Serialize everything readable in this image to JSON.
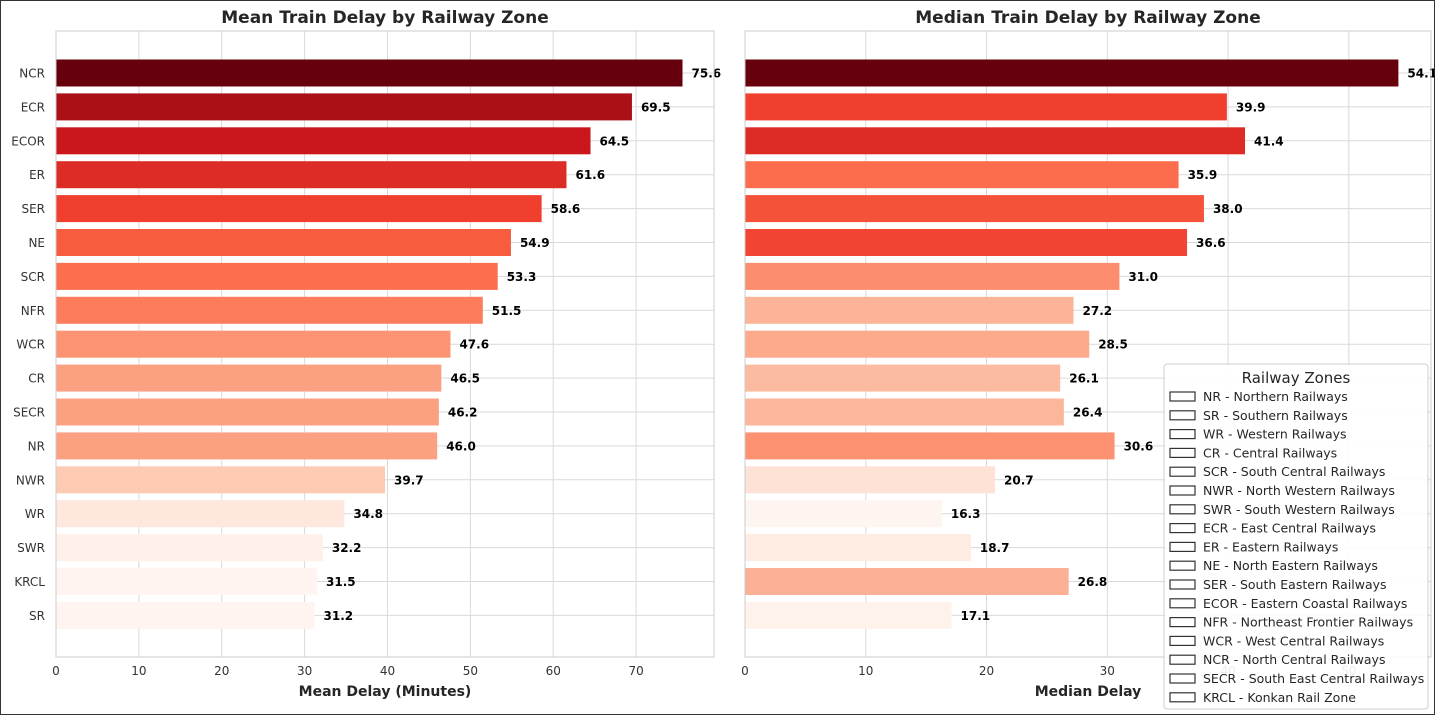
{
  "chart_data": [
    {
      "type": "bar",
      "orientation": "horizontal",
      "title": "Mean Train Delay by Railway Zone",
      "xlabel": "Mean Delay (Minutes)",
      "ylabel": "",
      "xlim": [
        0,
        79.4
      ],
      "xticks": [
        0,
        10,
        20,
        30,
        40,
        50,
        60,
        70
      ],
      "grid": true,
      "categories": [
        "NCR",
        "ECR",
        "ECOR",
        "ER",
        "SER",
        "NE",
        "SCR",
        "NFR",
        "WCR",
        "CR",
        "SECR",
        "NR",
        "NWR",
        "WR",
        "SWR",
        "KRCL",
        "SR"
      ],
      "values": [
        75.6,
        69.5,
        64.5,
        61.6,
        58.6,
        54.9,
        53.3,
        51.5,
        47.6,
        46.5,
        46.2,
        46.0,
        39.7,
        34.8,
        32.2,
        31.5,
        31.2
      ],
      "value_labels": [
        "75.6",
        "69.5",
        "64.5",
        "61.6",
        "58.6",
        "54.9",
        "53.3",
        "51.5",
        "47.6",
        "46.5",
        "46.2",
        "46.0",
        "39.7",
        "34.8",
        "32.2",
        "31.5",
        "31.2"
      ],
      "colors": [
        "#67000d",
        "#ab1017",
        "#c9171c",
        "#dd2b25",
        "#f03f2e",
        "#f85c3f",
        "#fc6e4d",
        "#fc7c5b",
        "#fc9373",
        "#fca082",
        "#fca082",
        "#fca082",
        "#fdcab4",
        "#fee8dd",
        "#fff0e9",
        "#fff4ef",
        "#fff4ef"
      ]
    },
    {
      "type": "bar",
      "orientation": "horizontal",
      "title": "Median Train Delay by Railway Zone",
      "xlabel": "Median Delay",
      "ylabel": "",
      "xlim": [
        0,
        56.8
      ],
      "xticks": [
        0,
        10,
        20,
        30,
        40,
        50
      ],
      "grid": true,
      "categories": [
        "NCR",
        "ECR",
        "ECOR",
        "ER",
        "SER",
        "NE",
        "SCR",
        "NFR",
        "WCR",
        "CR",
        "SECR",
        "NR",
        "NWR",
        "WR",
        "SWR",
        "KRCL",
        "SR"
      ],
      "values": [
        54.1,
        39.9,
        41.4,
        35.9,
        38.0,
        36.6,
        31.0,
        27.2,
        28.5,
        26.1,
        26.4,
        30.6,
        20.7,
        16.3,
        18.7,
        26.8,
        17.1
      ],
      "value_labels": [
        "54.1",
        "39.9",
        "41.4",
        "35.9",
        "38.0",
        "36.6",
        "31.0",
        "27.2",
        "28.5",
        "26.1",
        "26.4",
        "30.6",
        "20.7",
        "16.3",
        "18.7",
        "26.8",
        "17.1"
      ],
      "colors": [
        "#67000d",
        "#f03f2e",
        "#dd2b25",
        "#fb6d4d",
        "#f5523a",
        "#f14432",
        "#fc8d6d",
        "#fcb398",
        "#fca98c",
        "#fcbaa0",
        "#fcb69c",
        "#fc9272",
        "#fee2d5",
        "#fff5f0",
        "#feebe2",
        "#fcb095",
        "#fff2eb"
      ],
      "legend": {
        "title": "Railway Zones",
        "placement": "lower-right",
        "entries": [
          "NR - Northern Railways",
          "SR - Southern Railways",
          "WR - Western Railways",
          "CR - Central Railways",
          "SCR - South Central Railways",
          "NWR - North Western Railways",
          "SWR - South Western Railways",
          "ECR - East Central Railways",
          "ER - Eastern Railways",
          "NE - North Eastern Railways",
          "SER - South Eastern Railways",
          "ECOR - Eastern Coastal Railways",
          "NFR - Northeast Frontier Railways",
          "WCR - West Central Railways",
          "NCR - North Central Railways",
          "SECR - South East Central Railways",
          "KRCL - Konkan Rail Zone"
        ]
      }
    }
  ]
}
